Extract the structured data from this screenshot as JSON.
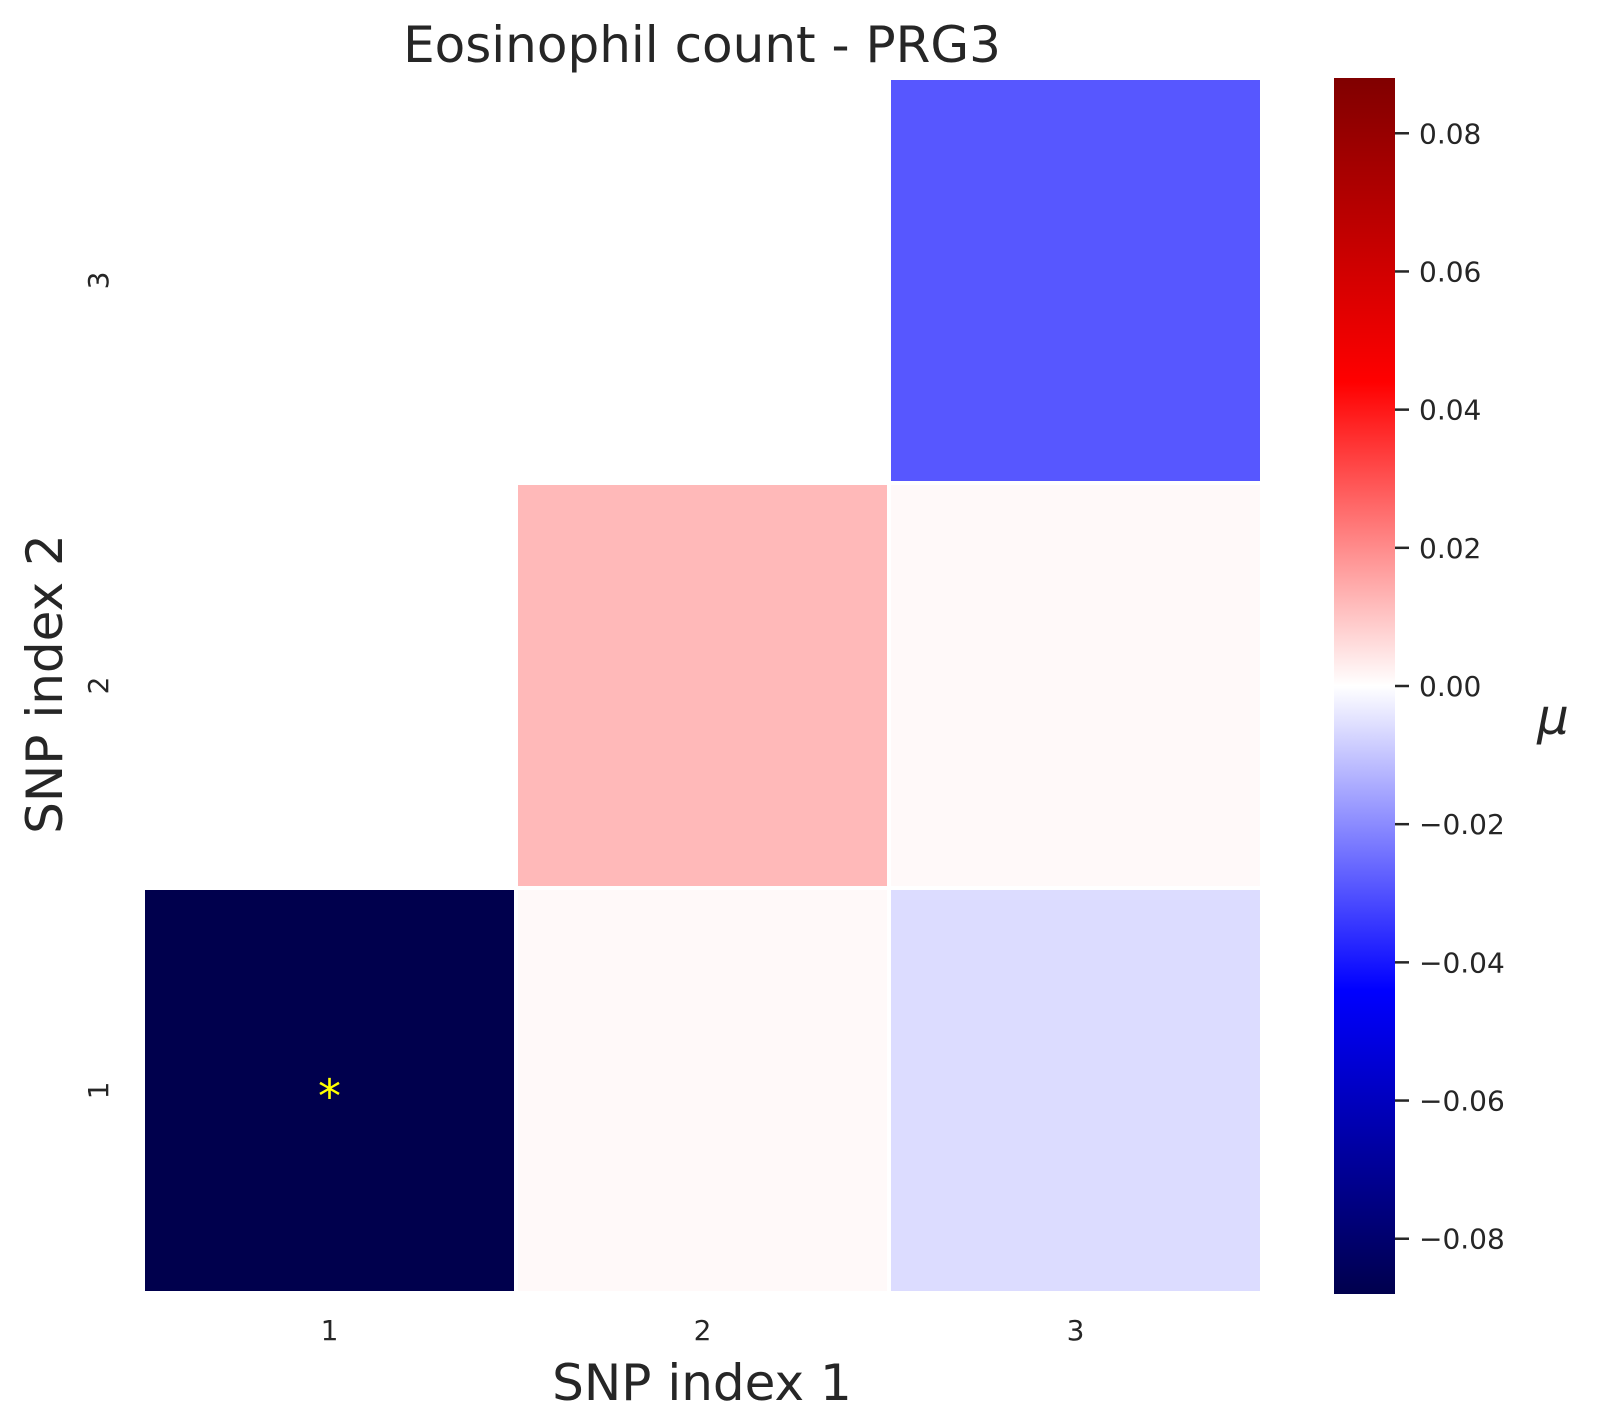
{
  "chart_data": {
    "type": "heatmap",
    "title": "Eosinophil count - PRG3",
    "xlabel": "SNP index 1",
    "ylabel": "SNP index 2",
    "x_categories": [
      "1",
      "2",
      "3"
    ],
    "y_categories": [
      "1",
      "2",
      "3"
    ],
    "cells": [
      {
        "x": "1",
        "y": "1",
        "value": -0.088,
        "annotation": "*"
      },
      {
        "x": "2",
        "y": "1",
        "value": 0.001,
        "annotation": ""
      },
      {
        "x": "3",
        "y": "1",
        "value": -0.006,
        "annotation": ""
      },
      {
        "x": "2",
        "y": "2",
        "value": 0.012,
        "annotation": ""
      },
      {
        "x": "3",
        "y": "2",
        "value": 0.001,
        "annotation": ""
      },
      {
        "x": "3",
        "y": "3",
        "value": -0.029,
        "annotation": ""
      }
    ],
    "colorbar": {
      "label": "μ",
      "range": [
        -0.088,
        0.088
      ],
      "ticks": [
        0.08,
        0.06,
        0.04,
        0.02,
        0.0,
        -0.02,
        -0.04,
        -0.06,
        -0.08
      ],
      "tick_labels": [
        "0.08",
        "0.06",
        "0.04",
        "0.02",
        "0.00",
        "−0.02",
        "−0.04",
        "−0.06",
        "−0.08"
      ],
      "colormap": "seismic",
      "colors": [
        "#00004d",
        "#0000ff",
        "#ffffff",
        "#ff0000",
        "#800000"
      ]
    },
    "annotation_color": "#ffff00",
    "grid": false
  }
}
